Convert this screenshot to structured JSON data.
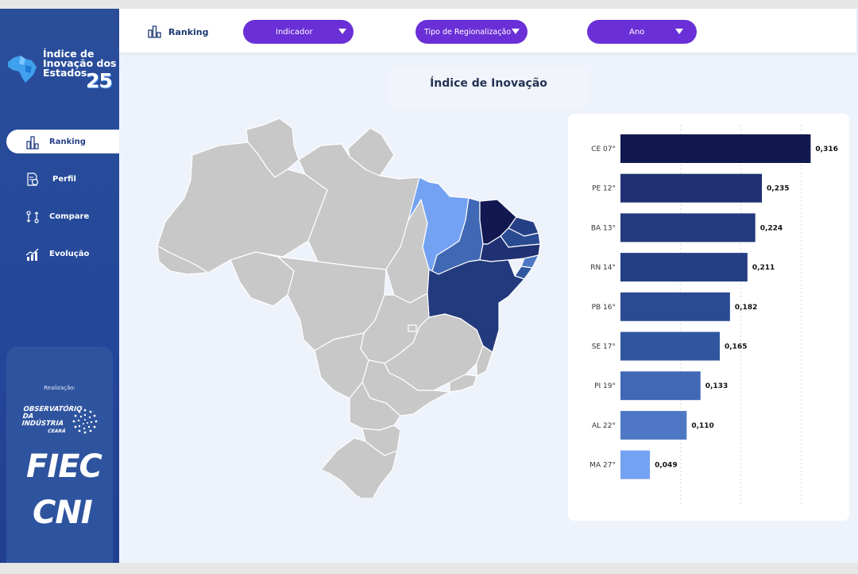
{
  "logo": {
    "title": "Índice de Inovação dos Estados",
    "year": "25"
  },
  "sidebar": {
    "items": [
      {
        "label": "Ranking",
        "icon": "bar-chart-icon",
        "active": true
      },
      {
        "label": "Perfil",
        "icon": "profile-document-icon",
        "active": false
      },
      {
        "label": "Compare",
        "icon": "compare-arrows-icon",
        "active": false
      },
      {
        "label": "Evolução",
        "icon": "trend-chart-icon",
        "active": false
      }
    ],
    "realizacao": "Realização:",
    "partners": {
      "obs_line1": "OBSERVATÓRIO",
      "obs_line2": "DA INDÚSTRIA",
      "obs_line3": "CEARÁ",
      "fiec": "FIEC",
      "cni": "CNI"
    }
  },
  "topbar": {
    "tab_label": "Ranking",
    "filters": {
      "indicador": "Indicador",
      "regionalizacao": "Tipo de Regionalização",
      "ano": "Ano"
    }
  },
  "map": {
    "title": "Índice de Inovação"
  },
  "colors": {
    "sidebar": "#2a4e9a",
    "dropdown": "#6a2fd6",
    "map_gray": "#c8c8c8"
  },
  "chart_data": {
    "type": "bar",
    "orientation": "horizontal",
    "categories": [
      "CE 07°",
      "PE 12°",
      "BA 13°",
      "RN 14°",
      "PB 16°",
      "SE 17°",
      "PI 19°",
      "AL 22°",
      "MA 27°"
    ],
    "values": [
      0.316,
      0.235,
      0.224,
      0.211,
      0.182,
      0.165,
      0.133,
      0.11,
      0.049
    ],
    "value_labels": [
      "0,316",
      "0,235",
      "0,224",
      "0,211",
      "0,182",
      "0,165",
      "0,133",
      "0,110",
      "0,049"
    ],
    "colors": [
      "#121850",
      "#1f3173",
      "#233a7d",
      "#253f86",
      "#2a4a92",
      "#30569f",
      "#4168b5",
      "#4e78c5",
      "#74a2f2"
    ],
    "xlim": [
      0,
      0.33
    ],
    "grid": true
  }
}
